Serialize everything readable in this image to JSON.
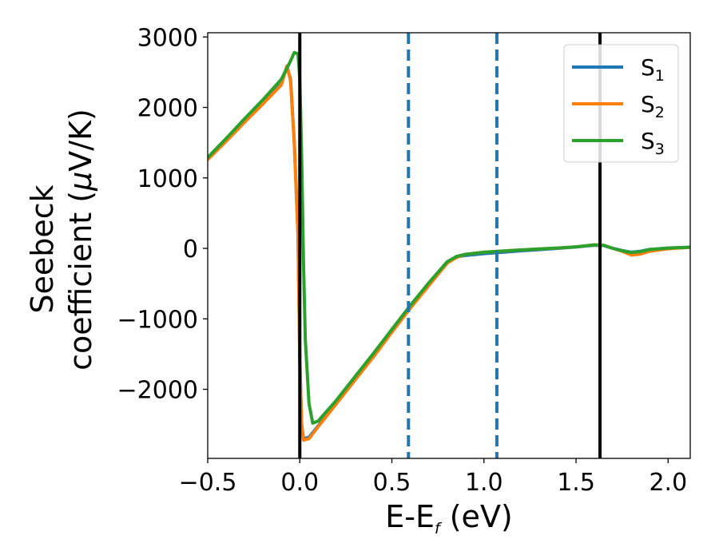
{
  "chart_data": {
    "type": "line",
    "title": "",
    "xlabel": "E-E",
    "xlabel_sub": "f",
    "xlabel_unit": " (eV)",
    "ylabel_line1": "Seebeck",
    "ylabel_line2": "coefficient  (",
    "ylabel_mu": "μ",
    "ylabel_unit": "V/K)",
    "xlim": [
      -0.5,
      2.12
    ],
    "ylim": [
      -2980,
      3060
    ],
    "x_ticks": [
      -0.5,
      0.0,
      0.5,
      1.0,
      1.5,
      2.0
    ],
    "x_tick_labels": [
      "−0.5",
      "0.0",
      "0.5",
      "1.0",
      "1.5",
      "2.0"
    ],
    "y_ticks": [
      -2000,
      -1000,
      0,
      1000,
      2000,
      3000
    ],
    "y_tick_labels": [
      "−2000",
      "−1000",
      "0",
      "1000",
      "2000",
      "3000"
    ],
    "grid": false,
    "legend_position": "top-right",
    "series": [
      {
        "name": "S",
        "name_sub": "1",
        "color": "#1f77b4",
        "x": [
          -0.5,
          -0.4,
          -0.3,
          -0.2,
          -0.1,
          -0.07,
          -0.05,
          -0.03,
          -0.01,
          0.0,
          0.01,
          0.02,
          0.05,
          0.1,
          0.2,
          0.3,
          0.4,
          0.5,
          0.6,
          0.7,
          0.8,
          0.85,
          0.9,
          1.0,
          1.1,
          1.2,
          1.3,
          1.4,
          1.5,
          1.6,
          1.65,
          1.7,
          1.75,
          1.8,
          1.85,
          1.9,
          2.0,
          2.1,
          2.12
        ],
        "y": [
          1270,
          1530,
          1800,
          2060,
          2330,
          2580,
          2400,
          1500,
          200,
          -1600,
          -2500,
          -2700,
          -2680,
          -2520,
          -2190,
          -1860,
          -1530,
          -1180,
          -840,
          -520,
          -200,
          -120,
          -100,
          -75,
          -55,
          -35,
          -18,
          0,
          20,
          45,
          40,
          0,
          -30,
          -55,
          -40,
          -15,
          5,
          15,
          18
        ]
      },
      {
        "name": "S",
        "name_sub": "2",
        "color": "#ff7f0e",
        "x": [
          -0.5,
          -0.4,
          -0.3,
          -0.2,
          -0.1,
          -0.07,
          -0.05,
          -0.03,
          -0.01,
          0.0,
          0.01,
          0.02,
          0.05,
          0.1,
          0.2,
          0.3,
          0.4,
          0.5,
          0.6,
          0.7,
          0.8,
          0.85,
          0.9,
          1.0,
          1.1,
          1.2,
          1.3,
          1.4,
          1.5,
          1.6,
          1.65,
          1.7,
          1.75,
          1.8,
          1.85,
          1.9,
          2.0,
          2.1,
          2.12
        ],
        "y": [
          1260,
          1520,
          1790,
          2050,
          2320,
          2590,
          2380,
          1480,
          180,
          -1620,
          -2520,
          -2720,
          -2700,
          -2530,
          -2200,
          -1870,
          -1540,
          -1190,
          -850,
          -530,
          -210,
          -130,
          -85,
          -55,
          -38,
          -22,
          -8,
          5,
          22,
          50,
          45,
          0,
          -40,
          -95,
          -80,
          -40,
          -5,
          12,
          16
        ]
      },
      {
        "name": "S",
        "name_sub": "3",
        "color": "#2ca02c",
        "x": [
          -0.5,
          -0.4,
          -0.3,
          -0.2,
          -0.1,
          -0.05,
          -0.03,
          -0.01,
          0.0,
          0.01,
          0.02,
          0.03,
          0.05,
          0.07,
          0.1,
          0.2,
          0.3,
          0.4,
          0.5,
          0.6,
          0.7,
          0.8,
          0.85,
          0.9,
          1.0,
          1.1,
          1.2,
          1.3,
          1.4,
          1.5,
          1.6,
          1.65,
          1.7,
          1.75,
          1.8,
          1.85,
          1.9,
          2.0,
          2.1,
          2.12
        ],
        "y": [
          1290,
          1560,
          1840,
          2110,
          2400,
          2660,
          2780,
          2760,
          2400,
          1300,
          -200,
          -1300,
          -2200,
          -2480,
          -2450,
          -2150,
          -1820,
          -1490,
          -1150,
          -810,
          -490,
          -190,
          -115,
          -85,
          -55,
          -38,
          -22,
          -8,
          5,
          22,
          50,
          45,
          0,
          -35,
          -60,
          -45,
          -15,
          5,
          15,
          18
        ]
      }
    ],
    "vertical_lines": [
      {
        "x": 0.0,
        "color": "#000000",
        "style": "solid"
      },
      {
        "x": 0.59,
        "color": "#1f77b4",
        "style": "dashed"
      },
      {
        "x": 1.07,
        "color": "#1f77b4",
        "style": "dashed"
      },
      {
        "x": 1.63,
        "color": "#000000",
        "style": "solid"
      }
    ]
  }
}
